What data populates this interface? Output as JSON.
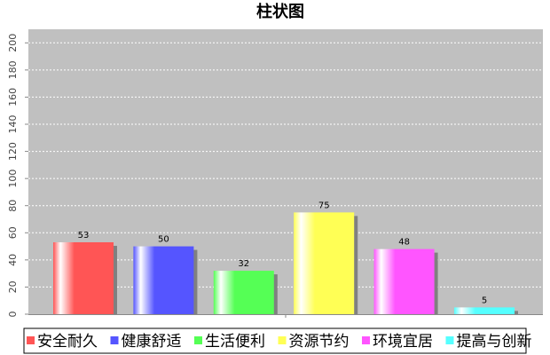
{
  "chart_data": {
    "type": "bar",
    "title": "柱状图",
    "categories": [
      null
    ],
    "series": [
      {
        "name": "安全耐久",
        "color": "#ff5555",
        "values": [
          53
        ]
      },
      {
        "name": "健康舒适",
        "color": "#5555ff",
        "values": [
          50
        ]
      },
      {
        "name": "生活便利",
        "color": "#55ff55",
        "values": [
          32
        ]
      },
      {
        "name": "资源节约",
        "color": "#ffff55",
        "values": [
          75
        ]
      },
      {
        "name": "环境宜居",
        "color": "#ff55ff",
        "values": [
          48
        ]
      },
      {
        "name": "提高与创新",
        "color": "#55ffff",
        "values": [
          5
        ]
      }
    ],
    "ylim": [
      0,
      210
    ],
    "yticks": [
      0,
      20,
      40,
      60,
      80,
      100,
      120,
      140,
      160,
      180,
      200
    ],
    "grid": true,
    "legend": "bottom"
  }
}
